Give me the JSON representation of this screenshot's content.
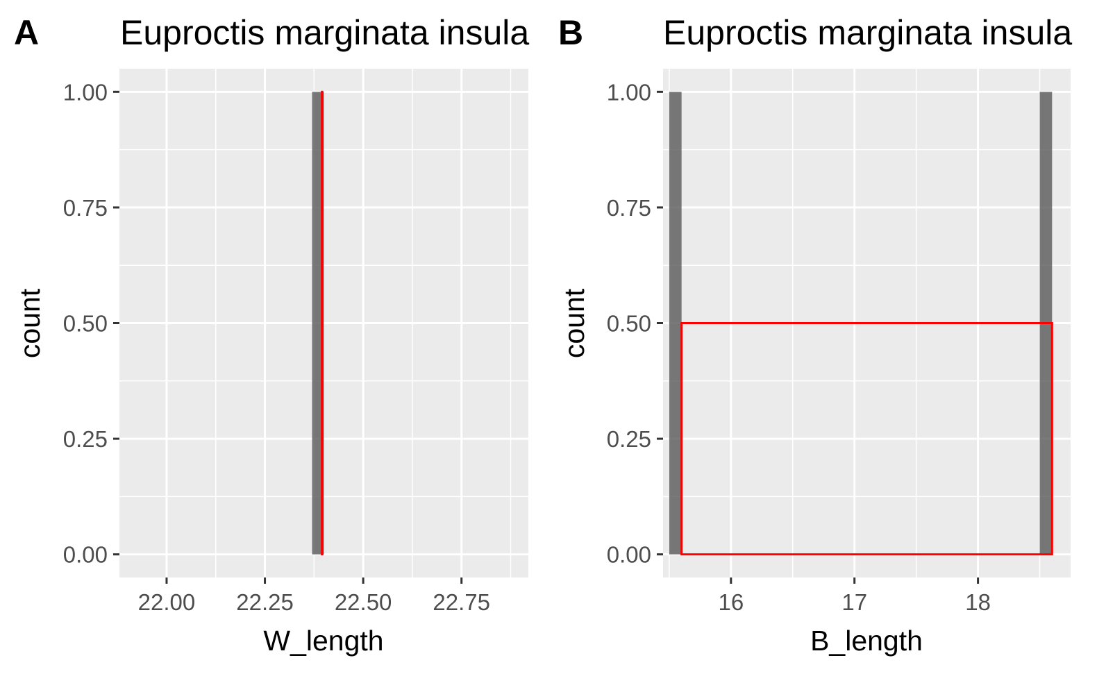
{
  "chart_data": [
    {
      "panel_tag": "A",
      "type": "bar",
      "title": "Euproctis marginata insula",
      "xlabel": "W_length",
      "ylabel": "count",
      "xlim": [
        21.88,
        22.92
      ],
      "ylim": [
        -0.05,
        1.05
      ],
      "x_ticks": [
        22.0,
        22.25,
        22.5,
        22.75
      ],
      "x_tick_labels": [
        "22.00",
        "22.25",
        "22.50",
        "22.75"
      ],
      "y_ticks": [
        0,
        0.25,
        0.5,
        0.75,
        1.0
      ],
      "y_tick_labels": [
        "0.00",
        "0.25",
        "0.50",
        "0.75",
        "1.00"
      ],
      "bars": [
        {
          "xmin": 22.37,
          "xmax": 22.4,
          "count": 1
        }
      ],
      "density_outline": [
        {
          "xmin": 22.395,
          "xmax": 22.395,
          "count": 1
        }
      ],
      "bar_color": "#595959",
      "outline_color": "#ff0000",
      "panel_background": "#ebebeb",
      "grid": true
    },
    {
      "panel_tag": "B",
      "type": "bar",
      "title": "Euproctis marginata insula",
      "xlabel": "B_length",
      "ylabel": "count",
      "xlim": [
        15.45,
        18.75
      ],
      "ylim": [
        -0.05,
        1.05
      ],
      "x_ticks": [
        16,
        17,
        18
      ],
      "x_tick_labels": [
        "16",
        "17",
        "18"
      ],
      "y_ticks": [
        0,
        0.25,
        0.5,
        0.75,
        1.0
      ],
      "y_tick_labels": [
        "0.00",
        "0.25",
        "0.50",
        "0.75",
        "1.00"
      ],
      "bars": [
        {
          "xmin": 15.5,
          "xmax": 15.6,
          "count": 1
        },
        {
          "xmin": 18.5,
          "xmax": 18.6,
          "count": 1
        }
      ],
      "density_outline": [
        {
          "xmin": 15.6,
          "xmax": 18.6,
          "count": 0.5
        }
      ],
      "bar_color": "#595959",
      "outline_color": "#ff0000",
      "panel_background": "#ebebeb",
      "grid": true
    }
  ]
}
